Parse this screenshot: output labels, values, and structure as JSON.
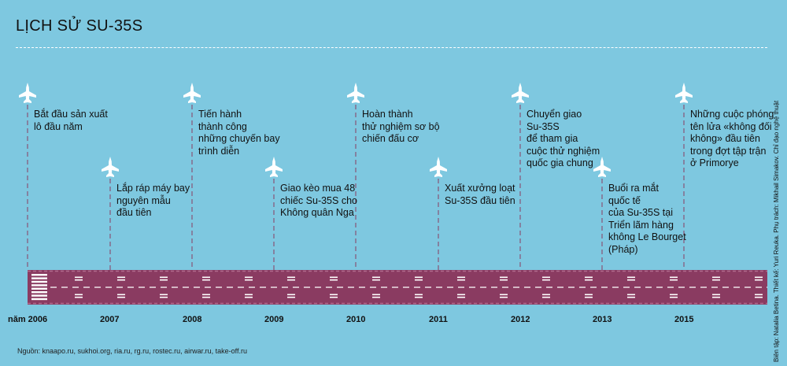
{
  "title": "LỊCH SỬ SU-35S",
  "events": [
    {
      "text": "Bắt đầu sản xuất\nlô đầu năm",
      "year": "2006",
      "row": "top"
    },
    {
      "text": "Lắp ráp máy bay\nnguyên mẫu\nđầu tiên",
      "year": "2007",
      "row": "bottom"
    },
    {
      "text": "Tiến hành\nthành công\nnhững chuyến bay\ntrình diễn",
      "year": "2008",
      "row": "top"
    },
    {
      "text": "Giao kèo mua 48\nchiếc Su-35S cho\nKhông quân Nga",
      "year": "2009",
      "row": "bottom"
    },
    {
      "text": "Hoàn thành\nthử nghiệm sơ bộ\nchiến đấu cơ",
      "year": "2010",
      "row": "top"
    },
    {
      "text": "Xuất xưởng loạt\nSu-35S đầu tiên",
      "year": "2011",
      "row": "bottom"
    },
    {
      "text": "Chuyển giao\nSu-35S\nđể tham gia\ncuộc thử nghiệm\nquốc gia chung",
      "year": "2012",
      "row": "top"
    },
    {
      "text": "Buổi ra mắt\nquốc tế\ncủa Su-35S tại\nTriển lãm hàng\nkhông Le Bourget\n(Pháp)",
      "year": "2013",
      "row": "bottom"
    },
    {
      "text": "Những cuộc phóng\ntên lửa «không đối\nkhông» đầu tiên\ntrong đợt tập trận\nở Primorye",
      "year": "2015",
      "row": "top"
    }
  ],
  "years": [
    "năm 2006",
    "2007",
    "2008",
    "2009",
    "2010",
    "2011",
    "2012",
    "2013",
    "2015"
  ],
  "credits": "Biên tập: Natalia Betina. Thiết kế: Yuri Reuka. Phụ trách: Mikhail Simakov. Chỉ đạo nghệ thuật",
  "source": "Nguồn: knaapo.ru, sukhoi.org, ria.ru, rg.ru, rostec.ru, airwar.ru, take-off.ru",
  "colors": {
    "background": "#7ec8e0",
    "runway": "#8a3b61",
    "marking": "#ffffff",
    "plane": "#ffffff",
    "guide": "#8a3b61"
  }
}
